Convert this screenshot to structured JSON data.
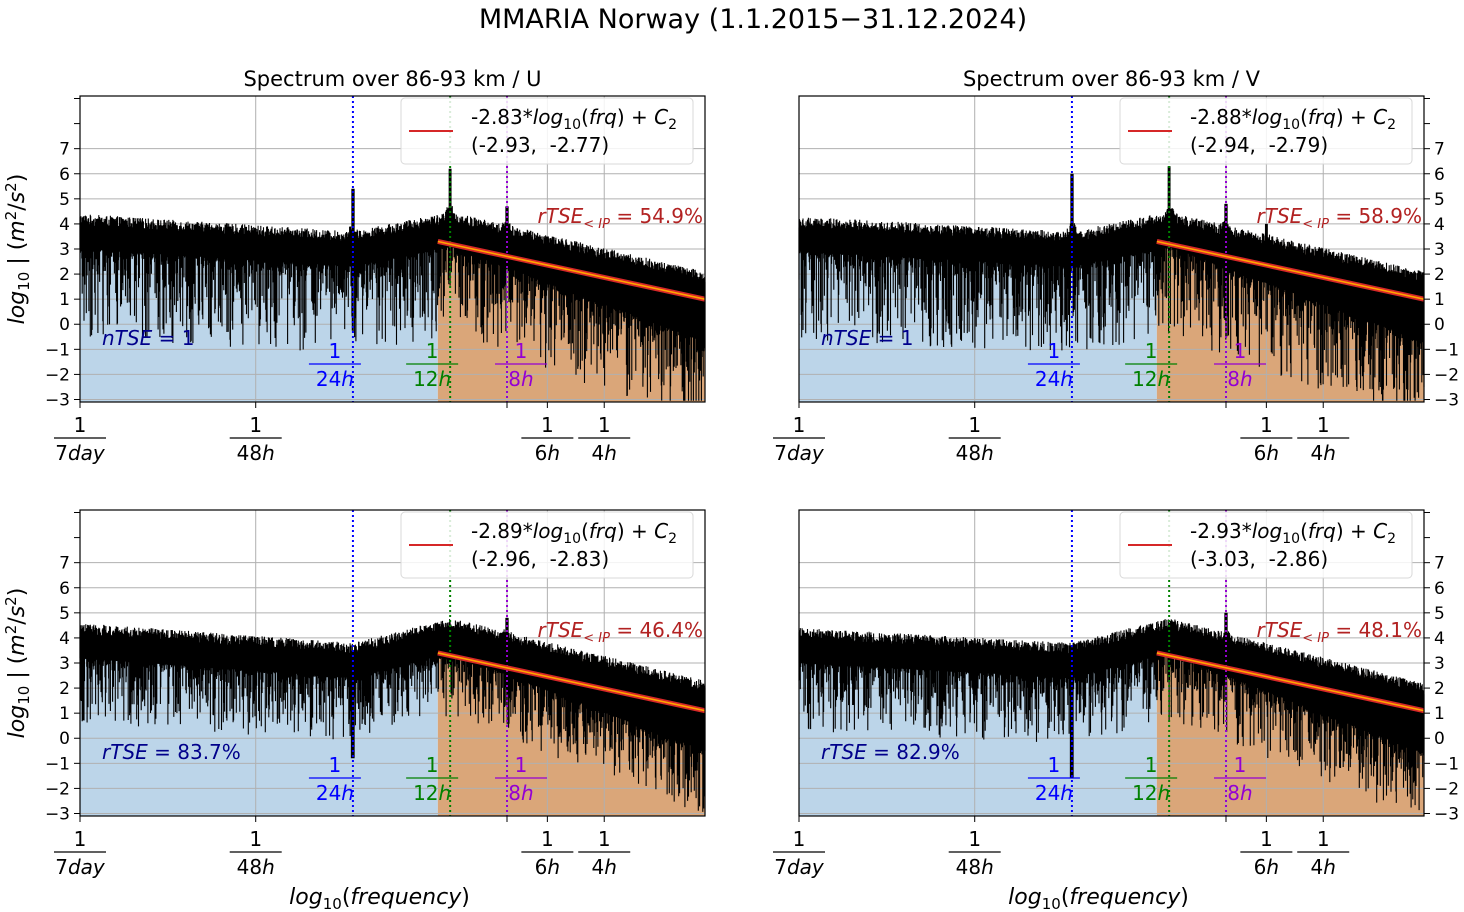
{
  "figure": {
    "suptitle": "MMARIA Norway (1.1.2015−31.12.2024)"
  },
  "chart_data": [
    {
      "type": "line",
      "panel": "top-left",
      "title": "Spectrum over 86-93 km / U",
      "xlabel": "",
      "ylabel": "log10 | (m²/s²)",
      "x_scale": "log",
      "x_unit": "period (hours)",
      "xlim_period_h": [
        168,
        1.95
      ],
      "ylim": [
        -3.1,
        9.1
      ],
      "yticks": [
        -3,
        -2,
        -1,
        0,
        1,
        2,
        3,
        4,
        5,
        6,
        7
      ],
      "yticks_minor_unlabeled": [
        8,
        9
      ],
      "ytick_side": "left",
      "xticks": [
        {
          "period_h": 168,
          "label_num": "1",
          "label_den": "7day"
        },
        {
          "period_h": 48,
          "label_num": "1",
          "label_den": "48h"
        },
        {
          "period_h": 6,
          "label_num": "1",
          "label_den": "6h"
        },
        {
          "period_h": 4,
          "label_num": "1",
          "label_den": "4h"
        }
      ],
      "grid": true,
      "markers": [
        {
          "period_h": 24,
          "label_num": "1",
          "label_den": "24h",
          "color": "#0000ff"
        },
        {
          "period_h": 12,
          "label_num": "1",
          "label_den": "12h",
          "color": "#008000"
        },
        {
          "period_h": 8,
          "label_num": "1",
          "label_den": "8h",
          "color": "#9400d3"
        }
      ],
      "spectrum_profile": {
        "level_low_freq": 3.6,
        "level_24h": 2.9,
        "level_12h": 3.7,
        "level_high_freq_end": 1.3,
        "noise_depth": 2.2,
        "peaks": [
          {
            "period_h": 24,
            "height": 5.4
          },
          {
            "period_h": 12,
            "height": 6.2
          },
          {
            "period_h": 8,
            "height": 4.7
          },
          {
            "period_h": 6,
            "height": 3.5
          }
        ]
      },
      "fit": {
        "legend": "-2.83*log10(frq) + C2",
        "slope": -2.83,
        "ci": [
          -2.93,
          -2.77
        ],
        "ci_label": "(-2.93,  -2.77)",
        "start_period_h": 13.1,
        "y_start": 3.3,
        "y_end": 1.0,
        "color": "#d62728"
      },
      "tse_low": {
        "label": "nTSE = 1",
        "color": "#00008b"
      },
      "tse_high": {
        "label": "rTSE<IP = 54.9%",
        "value_pct": 54.9,
        "color": "#b22222"
      },
      "fill_low_color": "#bcd5e9",
      "fill_high_color": "#daa679",
      "legend_position": "top-right"
    },
    {
      "type": "line",
      "panel": "top-right",
      "title": "Spectrum over 86-93 km / V",
      "xlabel": "",
      "ylabel": "",
      "x_scale": "log",
      "x_unit": "period (hours)",
      "xlim_period_h": [
        168,
        1.95
      ],
      "ylim": [
        -3.1,
        9.1
      ],
      "yticks": [
        -3,
        -2,
        -1,
        0,
        1,
        2,
        3,
        4,
        5,
        6,
        7
      ],
      "yticks_minor_unlabeled": [
        8,
        9
      ],
      "ytick_side": "right",
      "xticks": [
        {
          "period_h": 168,
          "label_num": "1",
          "label_den": "7day"
        },
        {
          "period_h": 48,
          "label_num": "1",
          "label_den": "48h"
        },
        {
          "period_h": 6,
          "label_num": "1",
          "label_den": "6h"
        },
        {
          "period_h": 4,
          "label_num": "1",
          "label_den": "4h"
        }
      ],
      "grid": true,
      "markers": [
        {
          "period_h": 24,
          "label_num": "1",
          "label_den": "24h",
          "color": "#0000ff"
        },
        {
          "period_h": 12,
          "label_num": "1",
          "label_den": "12h",
          "color": "#008000"
        },
        {
          "period_h": 8,
          "label_num": "1",
          "label_den": "8h",
          "color": "#9400d3"
        }
      ],
      "spectrum_profile": {
        "level_low_freq": 3.5,
        "level_24h": 2.9,
        "level_12h": 3.7,
        "level_high_freq_end": 1.3,
        "noise_depth": 2.2,
        "peaks": [
          {
            "period_h": 24,
            "height": 6.0
          },
          {
            "period_h": 12,
            "height": 6.3
          },
          {
            "period_h": 8,
            "height": 4.8
          },
          {
            "period_h": 6,
            "height": 4.0
          }
        ]
      },
      "fit": {
        "legend": "-2.88*log10(frq) + C2",
        "slope": -2.88,
        "ci": [
          -2.94,
          -2.79
        ],
        "ci_label": "(-2.94,  -2.79)",
        "start_period_h": 13.1,
        "y_start": 3.3,
        "y_end": 1.0,
        "color": "#d62728"
      },
      "tse_low": {
        "label": "nTSE = 1",
        "color": "#00008b"
      },
      "tse_high": {
        "label": "rTSE<IP = 58.9%",
        "value_pct": 58.9,
        "color": "#b22222"
      },
      "fill_low_color": "#bcd5e9",
      "fill_high_color": "#daa679",
      "legend_position": "top-right"
    },
    {
      "type": "line",
      "panel": "bottom-left",
      "title": "",
      "xlabel": "log10(frequency)",
      "ylabel": "log10 | (m²/s²)",
      "x_scale": "log",
      "x_unit": "period (hours)",
      "xlim_period_h": [
        168,
        1.95
      ],
      "ylim": [
        -3.1,
        9.1
      ],
      "yticks": [
        -3,
        -2,
        -1,
        0,
        1,
        2,
        3,
        4,
        5,
        6,
        7
      ],
      "yticks_minor_unlabeled": [
        8,
        9
      ],
      "ytick_side": "left",
      "xticks": [
        {
          "period_h": 168,
          "label_num": "1",
          "label_den": "7day"
        },
        {
          "period_h": 48,
          "label_num": "1",
          "label_den": "48h"
        },
        {
          "period_h": 6,
          "label_num": "1",
          "label_den": "6h"
        },
        {
          "period_h": 4,
          "label_num": "1",
          "label_den": "4h"
        }
      ],
      "grid": true,
      "markers": [
        {
          "period_h": 24,
          "label_num": "1",
          "label_den": "24h",
          "color": "#0000ff"
        },
        {
          "period_h": 12,
          "label_num": "1",
          "label_den": "12h",
          "color": "#008000"
        },
        {
          "period_h": 8,
          "label_num": "1",
          "label_den": "8h",
          "color": "#9400d3"
        }
      ],
      "spectrum_profile": {
        "level_low_freq": 3.8,
        "level_24h": 3.0,
        "level_12h": 4.0,
        "level_high_freq_end": 1.5,
        "noise_depth": 1.6,
        "peaks": [
          {
            "period_h": 12,
            "height": 4.5
          },
          {
            "period_h": 8,
            "height": 4.8
          },
          {
            "period_h": 6,
            "height": 3.6
          }
        ],
        "dip_24h": -0.8
      },
      "fit": {
        "legend": "-2.89*log10(frq) + C2",
        "slope": -2.89,
        "ci": [
          -2.96,
          -2.83
        ],
        "ci_label": "(-2.96,  -2.83)",
        "start_period_h": 13.1,
        "y_start": 3.4,
        "y_end": 1.1,
        "color": "#d62728"
      },
      "tse_low": {
        "label": "rTSE = 83.7%",
        "value_pct": 83.7,
        "color": "#00008b"
      },
      "tse_high": {
        "label": "rTSE<IP = 46.4%",
        "value_pct": 46.4,
        "color": "#b22222"
      },
      "fill_low_color": "#bcd5e9",
      "fill_high_color": "#daa679",
      "legend_position": "top-right"
    },
    {
      "type": "line",
      "panel": "bottom-right",
      "title": "",
      "xlabel": "log10(frequency)",
      "ylabel": "",
      "x_scale": "log",
      "x_unit": "period (hours)",
      "xlim_period_h": [
        168,
        1.95
      ],
      "ylim": [
        -3.1,
        9.1
      ],
      "yticks": [
        -3,
        -2,
        -1,
        0,
        1,
        2,
        3,
        4,
        5,
        6,
        7
      ],
      "yticks_minor_unlabeled": [
        8,
        9
      ],
      "ytick_side": "right",
      "xticks": [
        {
          "period_h": 168,
          "label_num": "1",
          "label_den": "7day"
        },
        {
          "period_h": 48,
          "label_num": "1",
          "label_den": "48h"
        },
        {
          "period_h": 6,
          "label_num": "1",
          "label_den": "6h"
        },
        {
          "period_h": 4,
          "label_num": "1",
          "label_den": "4h"
        }
      ],
      "grid": true,
      "markers": [
        {
          "period_h": 24,
          "label_num": "1",
          "label_den": "24h",
          "color": "#0000ff"
        },
        {
          "period_h": 12,
          "label_num": "1",
          "label_den": "12h",
          "color": "#008000"
        },
        {
          "period_h": 8,
          "label_num": "1",
          "label_den": "8h",
          "color": "#9400d3"
        }
      ],
      "spectrum_profile": {
        "level_low_freq": 3.6,
        "level_24h": 3.0,
        "level_12h": 4.0,
        "level_high_freq_end": 1.4,
        "noise_depth": 1.7,
        "peaks": [
          {
            "period_h": 12,
            "height": 4.4
          },
          {
            "period_h": 8,
            "height": 5.0
          },
          {
            "period_h": 6,
            "height": 3.5
          }
        ],
        "dip_24h": -1.6
      },
      "fit": {
        "legend": "-2.93*log10(frq) + C2",
        "slope": -2.93,
        "ci": [
          -3.03,
          -2.86
        ],
        "ci_label": "(-3.03,  -2.86)",
        "start_period_h": 13.1,
        "y_start": 3.4,
        "y_end": 1.1,
        "color": "#d62728"
      },
      "tse_low": {
        "label": "rTSE = 82.9%",
        "value_pct": 82.9,
        "color": "#00008b"
      },
      "tse_high": {
        "label": "rTSE<IP = 48.1%",
        "value_pct": 48.1,
        "color": "#b22222"
      },
      "fill_low_color": "#bcd5e9",
      "fill_high_color": "#daa679",
      "legend_position": "top-right"
    }
  ]
}
